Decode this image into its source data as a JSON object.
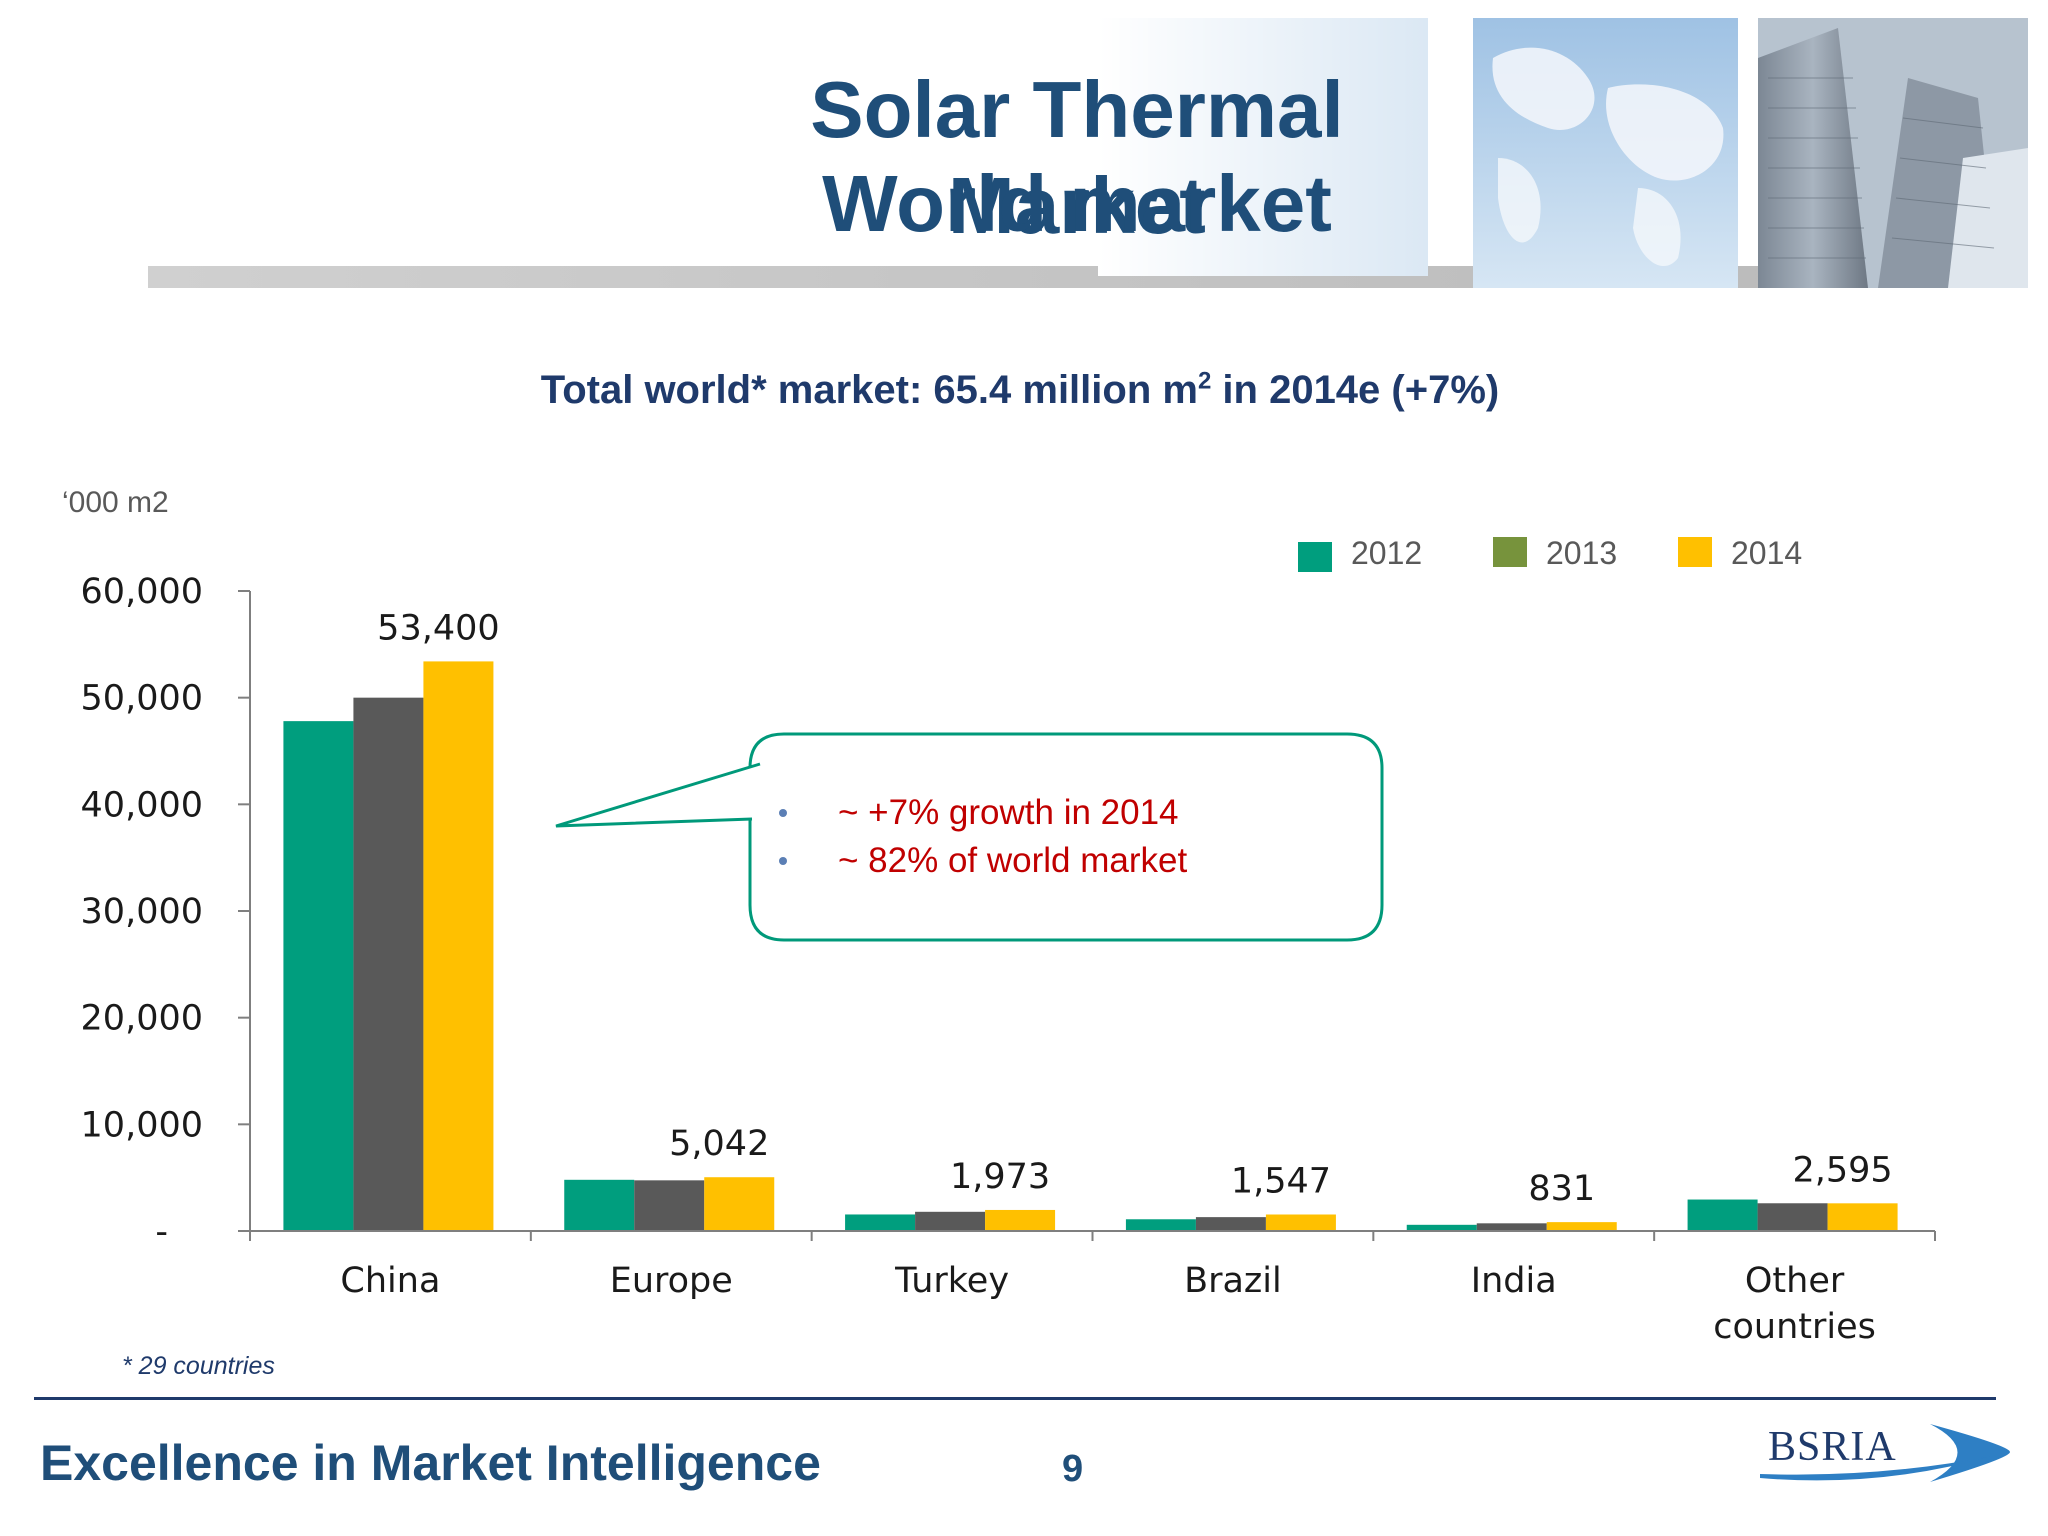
{
  "slide": {
    "title_line_1": "Solar Thermal Market",
    "title_line_2": "World market",
    "subtitle_pre": "Total world* market: 65.4 million m",
    "subtitle_sup": "2",
    "subtitle_post": " in 2014e (+7%)",
    "unit_label": "‘000 m2",
    "footnote": "* 29 countries",
    "tagline": "Excellence in Market Intelligence",
    "page_number": "9",
    "logo_text": "BSRIA"
  },
  "callout": {
    "bullets": [
      "~ +7% growth in 2014",
      "~ 82% of world market"
    ],
    "text_color": "#c00000",
    "border_color": "#00997a",
    "bullet_color": "#5b7fb5"
  },
  "colors": {
    "title": "#1f4e79",
    "series_2012": "#009e7e",
    "series_2013": "#595959",
    "series_2014": "#ffc000",
    "legend_2013": "#77933c"
  },
  "chart_data": {
    "type": "bar",
    "categories": [
      "China",
      "Europe",
      "Turkey",
      "Brazil",
      "India",
      "Other countries"
    ],
    "series": [
      {
        "name": "2012",
        "values": [
          47800,
          4800,
          1550,
          1100,
          580,
          2950
        ]
      },
      {
        "name": "2013",
        "values": [
          50000,
          4750,
          1800,
          1300,
          720,
          2600
        ]
      },
      {
        "name": "2014",
        "values": [
          53400,
          5042,
          1973,
          1547,
          831,
          2595
        ]
      }
    ],
    "data_labels": [
      "53,400",
      "5,042",
      "1,973",
      "1,547",
      "831",
      "2,595"
    ],
    "y_ticks": [
      "-",
      "10,000",
      "20,000",
      "30,000",
      "40,000",
      "50,000",
      "60,000"
    ],
    "y_tick_values": [
      0,
      10000,
      20000,
      30000,
      40000,
      50000,
      60000
    ],
    "ylim": [
      0,
      60000
    ],
    "ylabel": "‘000 m2",
    "legend_placement": "top-right",
    "grid": false
  }
}
